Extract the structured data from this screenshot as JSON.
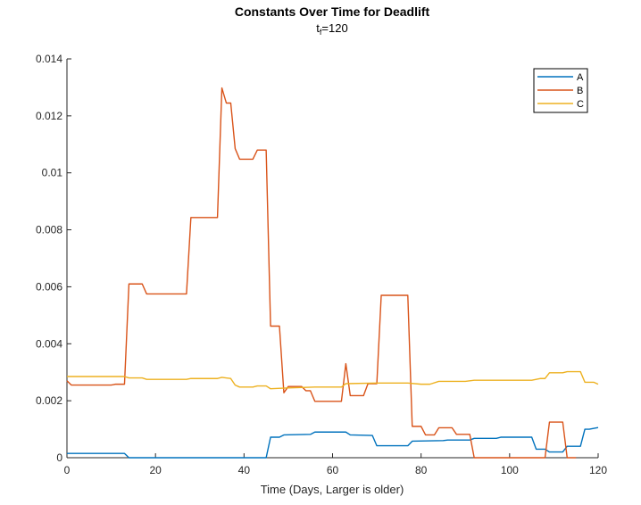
{
  "chart_data": {
    "type": "line",
    "title": "Constants Over Time for Deadlift",
    "subtitle": {
      "prefix": "t",
      "subscript": "f",
      "suffix": "=120"
    },
    "xlabel": "Time (Days, Larger is older)",
    "ylabel": "",
    "xlim": [
      0,
      120
    ],
    "ylim": [
      0,
      0.014
    ],
    "xticks": [
      0,
      20,
      40,
      60,
      80,
      100,
      120
    ],
    "yticks": [
      0,
      0.002,
      0.004,
      0.006,
      0.008,
      0.01,
      0.012,
      0.014
    ],
    "ytick_labels": [
      "0",
      "0.002",
      "0.004",
      "0.006",
      "0.008",
      "0.01",
      "0.012",
      "0.014"
    ],
    "grid": false,
    "legend_position": "top-right",
    "series": [
      {
        "name": "A",
        "color": "#0072BD",
        "points": [
          [
            0,
            0.00015
          ],
          [
            13,
            0.00015
          ],
          [
            14,
            0
          ],
          [
            45,
            0
          ],
          [
            46,
            0.00072
          ],
          [
            48,
            0.00072
          ],
          [
            49,
            0.0008
          ],
          [
            55,
            0.00082
          ],
          [
            56,
            0.0009
          ],
          [
            63,
            0.0009
          ],
          [
            64,
            0.0008
          ],
          [
            69,
            0.00078
          ],
          [
            70,
            0.00042
          ],
          [
            77,
            0.00042
          ],
          [
            78,
            0.00058
          ],
          [
            85,
            0.0006
          ],
          [
            86,
            0.00062
          ],
          [
            91,
            0.00062
          ],
          [
            92,
            0.00068
          ],
          [
            97,
            0.00068
          ],
          [
            98,
            0.00072
          ],
          [
            105,
            0.00072
          ],
          [
            106,
            0.0003
          ],
          [
            108,
            0.0003
          ],
          [
            109,
            0.0002
          ],
          [
            112,
            0.0002
          ],
          [
            113,
            0.0004
          ],
          [
            116,
            0.0004
          ],
          [
            117,
            0.001
          ],
          [
            118,
            0.001
          ],
          [
            120,
            0.00106
          ]
        ]
      },
      {
        "name": "B",
        "color": "#D95319",
        "points": [
          [
            0,
            0.0027
          ],
          [
            1,
            0.00255
          ],
          [
            10,
            0.00255
          ],
          [
            11,
            0.00258
          ],
          [
            13,
            0.00258
          ],
          [
            14,
            0.0061
          ],
          [
            17,
            0.0061
          ],
          [
            18,
            0.00575
          ],
          [
            27,
            0.00575
          ],
          [
            28,
            0.00843
          ],
          [
            34,
            0.00843
          ],
          [
            35,
            0.01298
          ],
          [
            36,
            0.01245
          ],
          [
            37,
            0.01245
          ],
          [
            38,
            0.01085
          ],
          [
            39,
            0.01048
          ],
          [
            42,
            0.01048
          ],
          [
            43,
            0.0108
          ],
          [
            45,
            0.0108
          ],
          [
            46,
            0.00462
          ],
          [
            48,
            0.00462
          ],
          [
            49,
            0.00228
          ],
          [
            50,
            0.0025
          ],
          [
            53,
            0.0025
          ],
          [
            54,
            0.00235
          ],
          [
            55,
            0.00235
          ],
          [
            56,
            0.00198
          ],
          [
            62,
            0.00198
          ],
          [
            63,
            0.0033
          ],
          [
            64,
            0.00218
          ],
          [
            67,
            0.00218
          ],
          [
            68,
            0.0026
          ],
          [
            70,
            0.0026
          ],
          [
            71,
            0.0057
          ],
          [
            77,
            0.0057
          ],
          [
            78,
            0.0011
          ],
          [
            80,
            0.0011
          ],
          [
            81,
            0.0008
          ],
          [
            83,
            0.0008
          ],
          [
            84,
            0.00105
          ],
          [
            87,
            0.00105
          ],
          [
            88,
            0.00082
          ],
          [
            91,
            0.00082
          ],
          [
            92,
            0
          ],
          [
            108,
            0
          ],
          [
            109,
            0.00125
          ],
          [
            112,
            0.00125
          ],
          [
            113,
            0
          ],
          [
            115,
            0
          ]
        ]
      },
      {
        "name": "C",
        "color": "#EDB120",
        "points": [
          [
            0,
            0.00285
          ],
          [
            13,
            0.00285
          ],
          [
            14,
            0.0028
          ],
          [
            17,
            0.0028
          ],
          [
            18,
            0.00275
          ],
          [
            27,
            0.00275
          ],
          [
            28,
            0.00278
          ],
          [
            34,
            0.00278
          ],
          [
            35,
            0.00282
          ],
          [
            37,
            0.00278
          ],
          [
            38,
            0.00255
          ],
          [
            39,
            0.00248
          ],
          [
            42,
            0.00248
          ],
          [
            43,
            0.00252
          ],
          [
            45,
            0.00252
          ],
          [
            46,
            0.00242
          ],
          [
            50,
            0.00245
          ],
          [
            56,
            0.00248
          ],
          [
            62,
            0.00248
          ],
          [
            63,
            0.0026
          ],
          [
            70,
            0.00262
          ],
          [
            77,
            0.00262
          ],
          [
            80,
            0.00258
          ],
          [
            82,
            0.00258
          ],
          [
            84,
            0.00268
          ],
          [
            90,
            0.00268
          ],
          [
            92,
            0.00272
          ],
          [
            105,
            0.00272
          ],
          [
            107,
            0.00278
          ],
          [
            108,
            0.00278
          ],
          [
            109,
            0.00298
          ],
          [
            112,
            0.00298
          ],
          [
            113,
            0.00302
          ],
          [
            116,
            0.00302
          ],
          [
            117,
            0.00265
          ],
          [
            119,
            0.00265
          ],
          [
            120,
            0.00258
          ]
        ]
      }
    ]
  }
}
